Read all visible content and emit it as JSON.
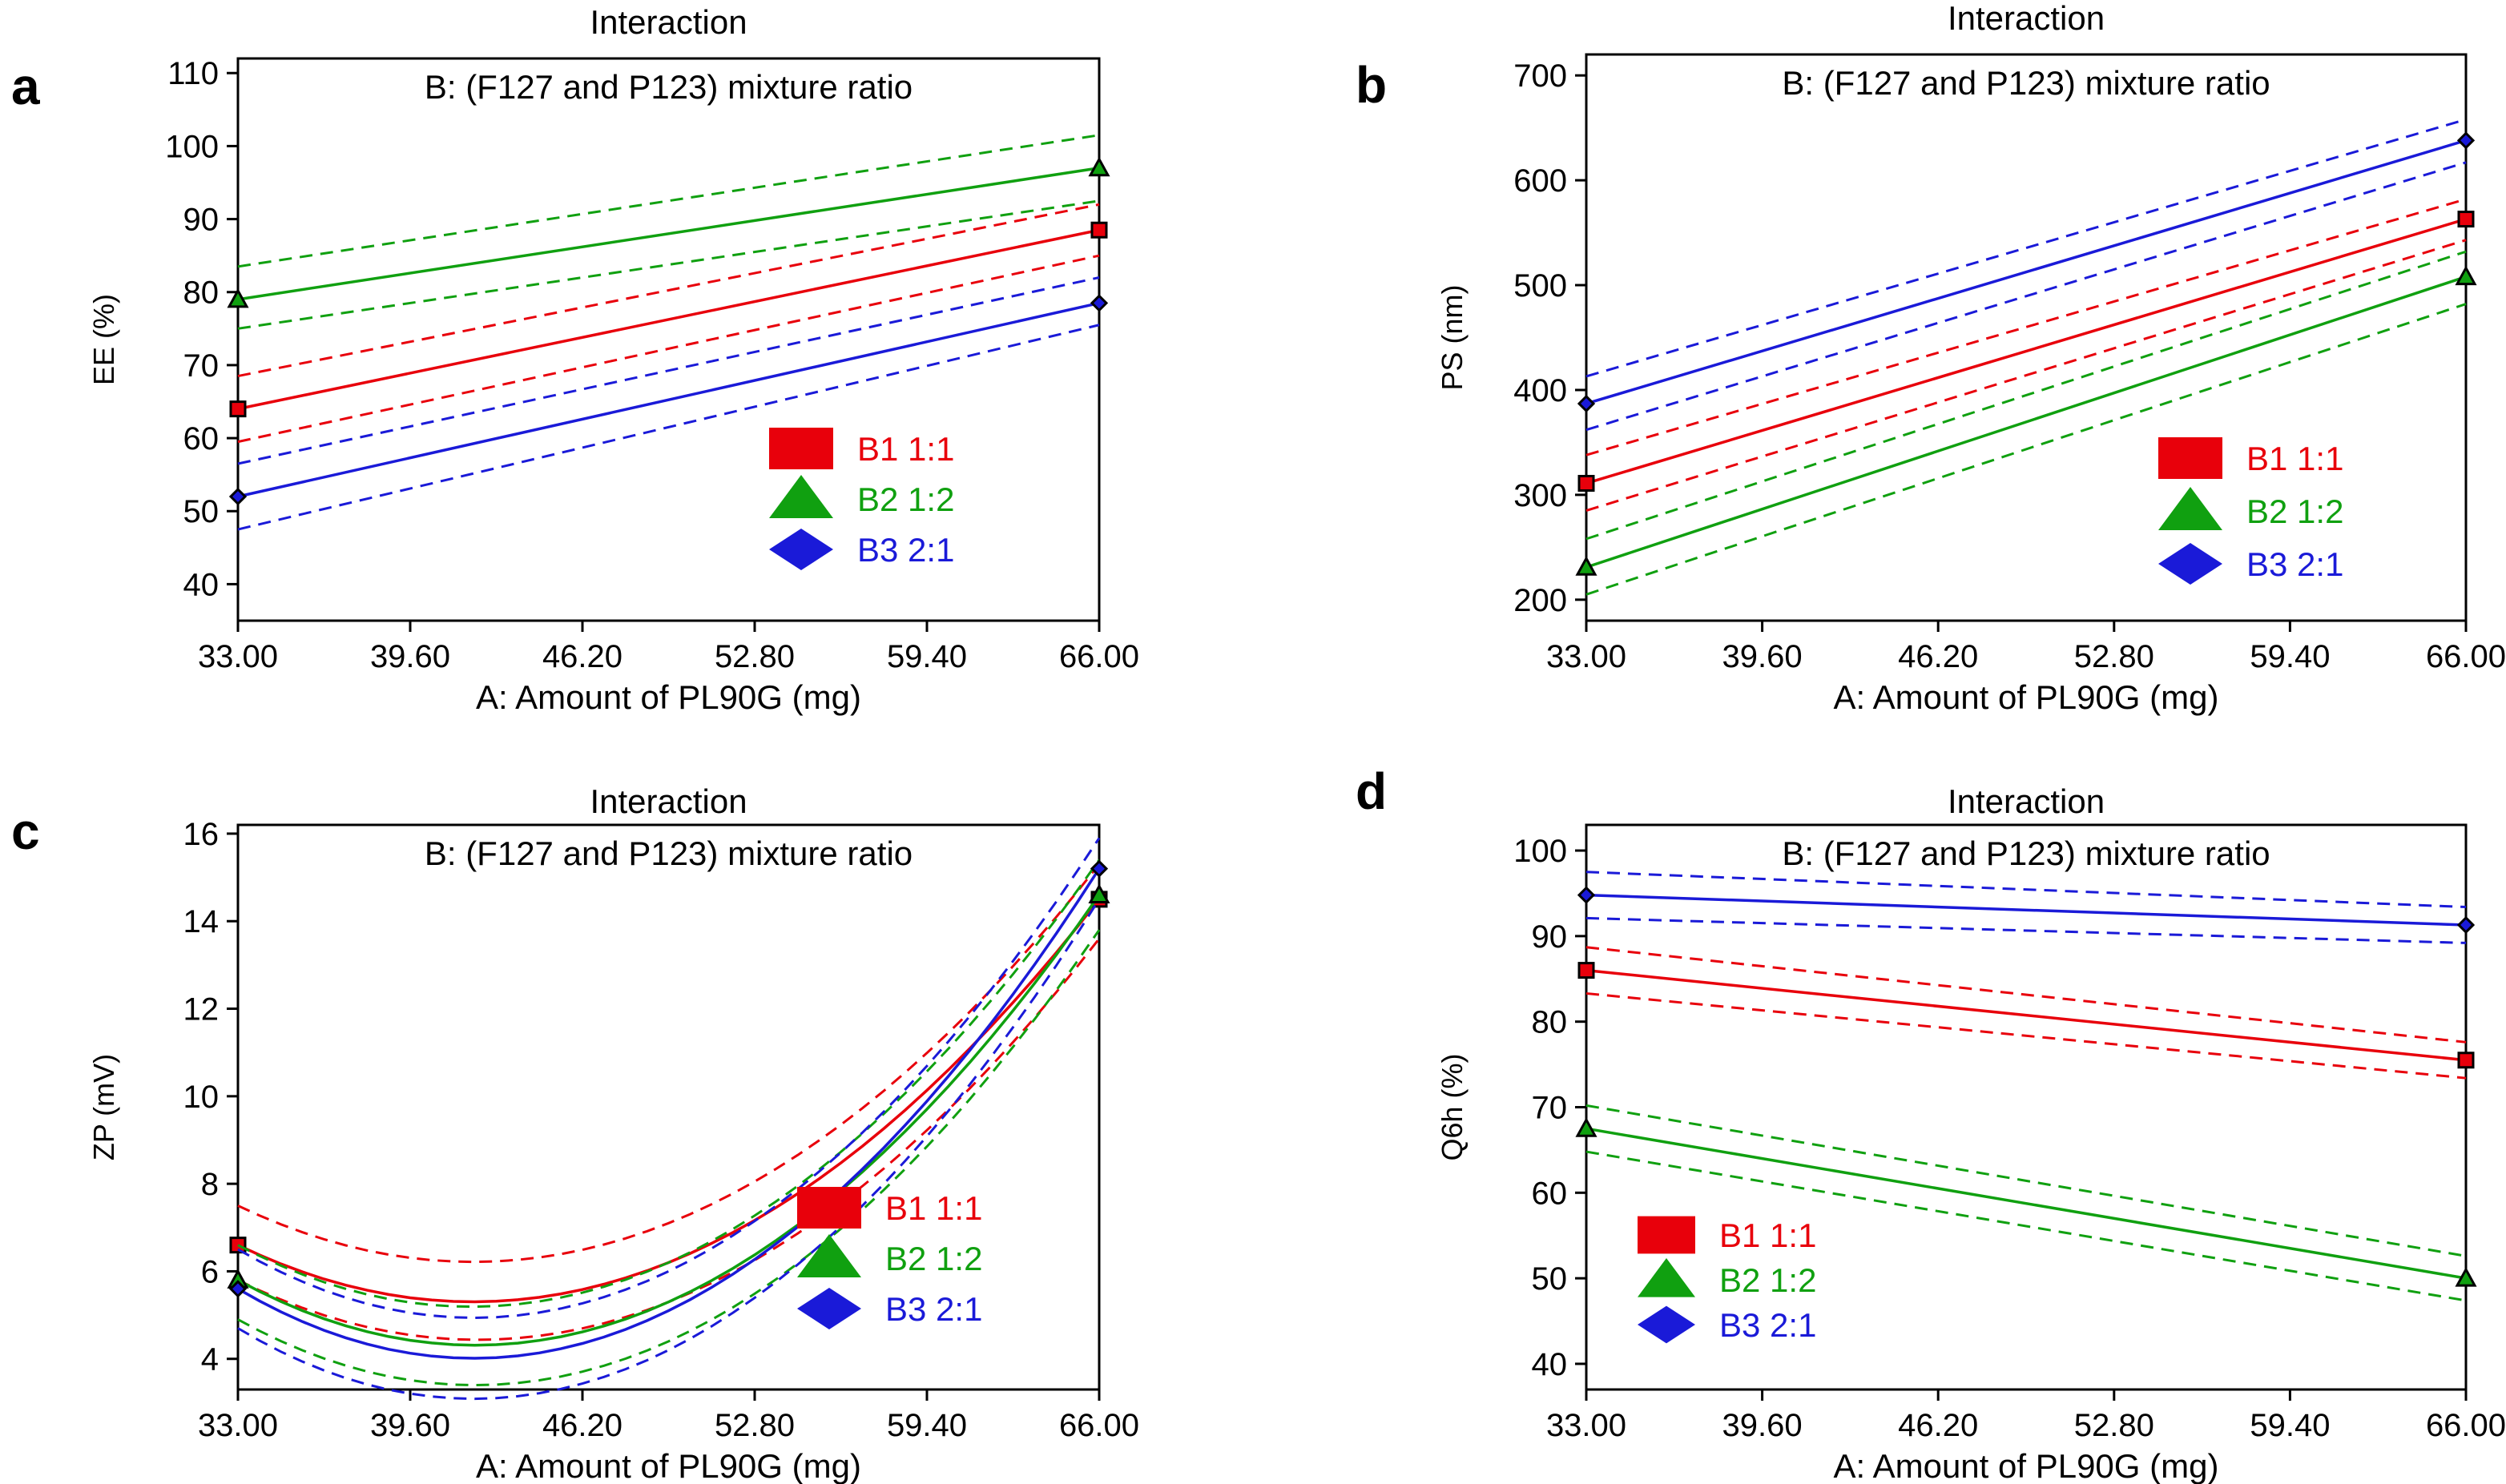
{
  "colors": {
    "B1": "#e8000b",
    "B2": "#10a010",
    "B3": "#1a1ad8"
  },
  "chart_data": [
    {
      "panel": "a",
      "type": "line",
      "title": "Interaction",
      "subtitle": "B: (F127 and P123) mixture ratio",
      "xlabel": "A:  Amount of PL90G (mg)",
      "ylabel": "EE (%)",
      "xlim": [
        33,
        66
      ],
      "ylim": [
        35,
        112
      ],
      "x_ticks": [
        "33.00",
        "39.60",
        "46.20",
        "52.80",
        "59.40",
        "66.00"
      ],
      "y_ticks": [
        "40",
        "50",
        "60",
        "70",
        "80",
        "90",
        "100",
        "110"
      ],
      "y_tick_values": [
        40,
        50,
        60,
        70,
        80,
        90,
        100,
        110
      ],
      "legend": [
        "B1 1:1",
        "B2 1:2",
        "B3 2:1"
      ],
      "legend_position": "lower-right",
      "series": [
        {
          "name": "B1 1:1",
          "key": "B1",
          "marker": "square",
          "x": [
            33,
            66
          ],
          "y": [
            64,
            88.5
          ],
          "ci_lower": [
            59.5,
            85
          ],
          "ci_upper": [
            68.5,
            92
          ]
        },
        {
          "name": "B2 1:2",
          "key": "B2",
          "marker": "triangle",
          "x": [
            33,
            66
          ],
          "y": [
            79,
            97
          ],
          "ci_lower": [
            75,
            92.5
          ],
          "ci_upper": [
            83.5,
            101.5
          ]
        },
        {
          "name": "B3 2:1",
          "key": "B3",
          "marker": "diamond",
          "x": [
            33,
            66
          ],
          "y": [
            52,
            78.5
          ],
          "ci_lower": [
            47.5,
            75.5
          ],
          "ci_upper": [
            56.5,
            82
          ]
        }
      ]
    },
    {
      "panel": "b",
      "type": "line",
      "title": "Interaction",
      "subtitle": "B: (F127 and P123) mixture ratio",
      "xlabel": "A:  Amount of PL90G (mg)",
      "ylabel": "PS (nm)",
      "xlim": [
        33,
        66
      ],
      "ylim": [
        180,
        720
      ],
      "x_ticks": [
        "33.00",
        "39.60",
        "46.20",
        "52.80",
        "59.40",
        "66.00"
      ],
      "y_ticks": [
        "200",
        "300",
        "400",
        "500",
        "600",
        "700"
      ],
      "y_tick_values": [
        200,
        300,
        400,
        500,
        600,
        700
      ],
      "legend": [
        "B1 1:1",
        "B2 1:2",
        "B3 2:1"
      ],
      "legend_position": "lower-right",
      "series": [
        {
          "name": "B1 1:1",
          "key": "B1",
          "marker": "square",
          "x": [
            33,
            66
          ],
          "y": [
            311,
            563
          ],
          "ci_lower": [
            285,
            543
          ],
          "ci_upper": [
            338,
            582
          ]
        },
        {
          "name": "B2 1:2",
          "key": "B2",
          "marker": "triangle",
          "x": [
            33,
            66
          ],
          "y": [
            231,
            508
          ],
          "ci_lower": [
            205,
            482
          ],
          "ci_upper": [
            258,
            532
          ]
        },
        {
          "name": "B3 2:1",
          "key": "B3",
          "marker": "diamond",
          "x": [
            33,
            66
          ],
          "y": [
            387,
            638
          ],
          "ci_lower": [
            362,
            617
          ],
          "ci_upper": [
            413,
            658
          ]
        }
      ]
    },
    {
      "panel": "c",
      "type": "line",
      "title": "Interaction",
      "subtitle": "B: (F127 and P123) mixture ratio",
      "xlabel": "A:  Amount of PL90G (mg)",
      "ylabel": "ZP (mV)",
      "xlim": [
        33,
        66
      ],
      "ylim": [
        3.3,
        16.2
      ],
      "x_ticks": [
        "33.00",
        "39.60",
        "46.20",
        "52.80",
        "59.40",
        "66.00"
      ],
      "y_ticks": [
        "4",
        "6",
        "8",
        "10",
        "12",
        "14",
        "16"
      ],
      "y_tick_values": [
        4,
        6,
        8,
        10,
        12,
        14,
        16
      ],
      "legend": [
        "B1 1:1",
        "B2 1:2",
        "B3 2:1"
      ],
      "legend_position": "lower-right",
      "series": [
        {
          "name": "B1 1:1",
          "key": "B1",
          "marker": "square",
          "x": [
            33,
            66
          ],
          "y": [
            6.6,
            14.5
          ],
          "curve": [
            6.6,
            6.2,
            14.5
          ],
          "ci_lower": [
            5.8,
            5.3,
            13.6
          ],
          "ci_upper": [
            7.5,
            7.1,
            15.3
          ]
        },
        {
          "name": "B2 1:2",
          "key": "B2",
          "marker": "triangle",
          "x": [
            33,
            66
          ],
          "y": [
            5.8,
            14.6
          ],
          "curve": [
            5.8,
            5.3,
            14.6
          ],
          "ci_lower": [
            4.9,
            4.4,
            13.8
          ],
          "ci_upper": [
            6.6,
            6.2,
            15.4
          ]
        },
        {
          "name": "B3 2:1",
          "key": "B3",
          "marker": "diamond",
          "x": [
            33,
            66
          ],
          "y": [
            5.6,
            15.2
          ],
          "curve": [
            5.6,
            5.1,
            15.2
          ],
          "ci_lower": [
            4.7,
            4.2,
            14.5
          ],
          "ci_upper": [
            6.5,
            6.0,
            15.9
          ]
        }
      ]
    },
    {
      "panel": "d",
      "type": "line",
      "title": "Interaction",
      "subtitle": "B: (F127 and P123) mixture ratio",
      "xlabel": "A:  Amount of PL90G (mg)",
      "ylabel": "Q6h (%)",
      "xlim": [
        33,
        66
      ],
      "ylim": [
        37,
        103
      ],
      "x_ticks": [
        "33.00",
        "39.60",
        "46.20",
        "52.80",
        "59.40",
        "66.00"
      ],
      "y_ticks": [
        "40",
        "50",
        "60",
        "70",
        "80",
        "90",
        "100"
      ],
      "y_tick_values": [
        40,
        50,
        60,
        70,
        80,
        90,
        100
      ],
      "legend": [
        "B1 1:1",
        "B2 1:2",
        "B3 2:1"
      ],
      "legend_position": "lower-left",
      "series": [
        {
          "name": "B1 1:1",
          "key": "B1",
          "marker": "square",
          "x": [
            33,
            66
          ],
          "y": [
            86,
            75.5
          ],
          "ci_lower": [
            83.3,
            73.4
          ],
          "ci_upper": [
            88.7,
            77.6
          ]
        },
        {
          "name": "B2 1:2",
          "key": "B2",
          "marker": "triangle",
          "x": [
            33,
            66
          ],
          "y": [
            67.5,
            50
          ],
          "ci_lower": [
            64.8,
            47.4
          ],
          "ci_upper": [
            70.2,
            52.6
          ]
        },
        {
          "name": "B3 2:1",
          "key": "B3",
          "marker": "diamond",
          "x": [
            33,
            66
          ],
          "y": [
            94.8,
            91.3
          ],
          "ci_lower": [
            92.1,
            89.2
          ],
          "ci_upper": [
            97.5,
            93.4
          ]
        }
      ]
    }
  ]
}
